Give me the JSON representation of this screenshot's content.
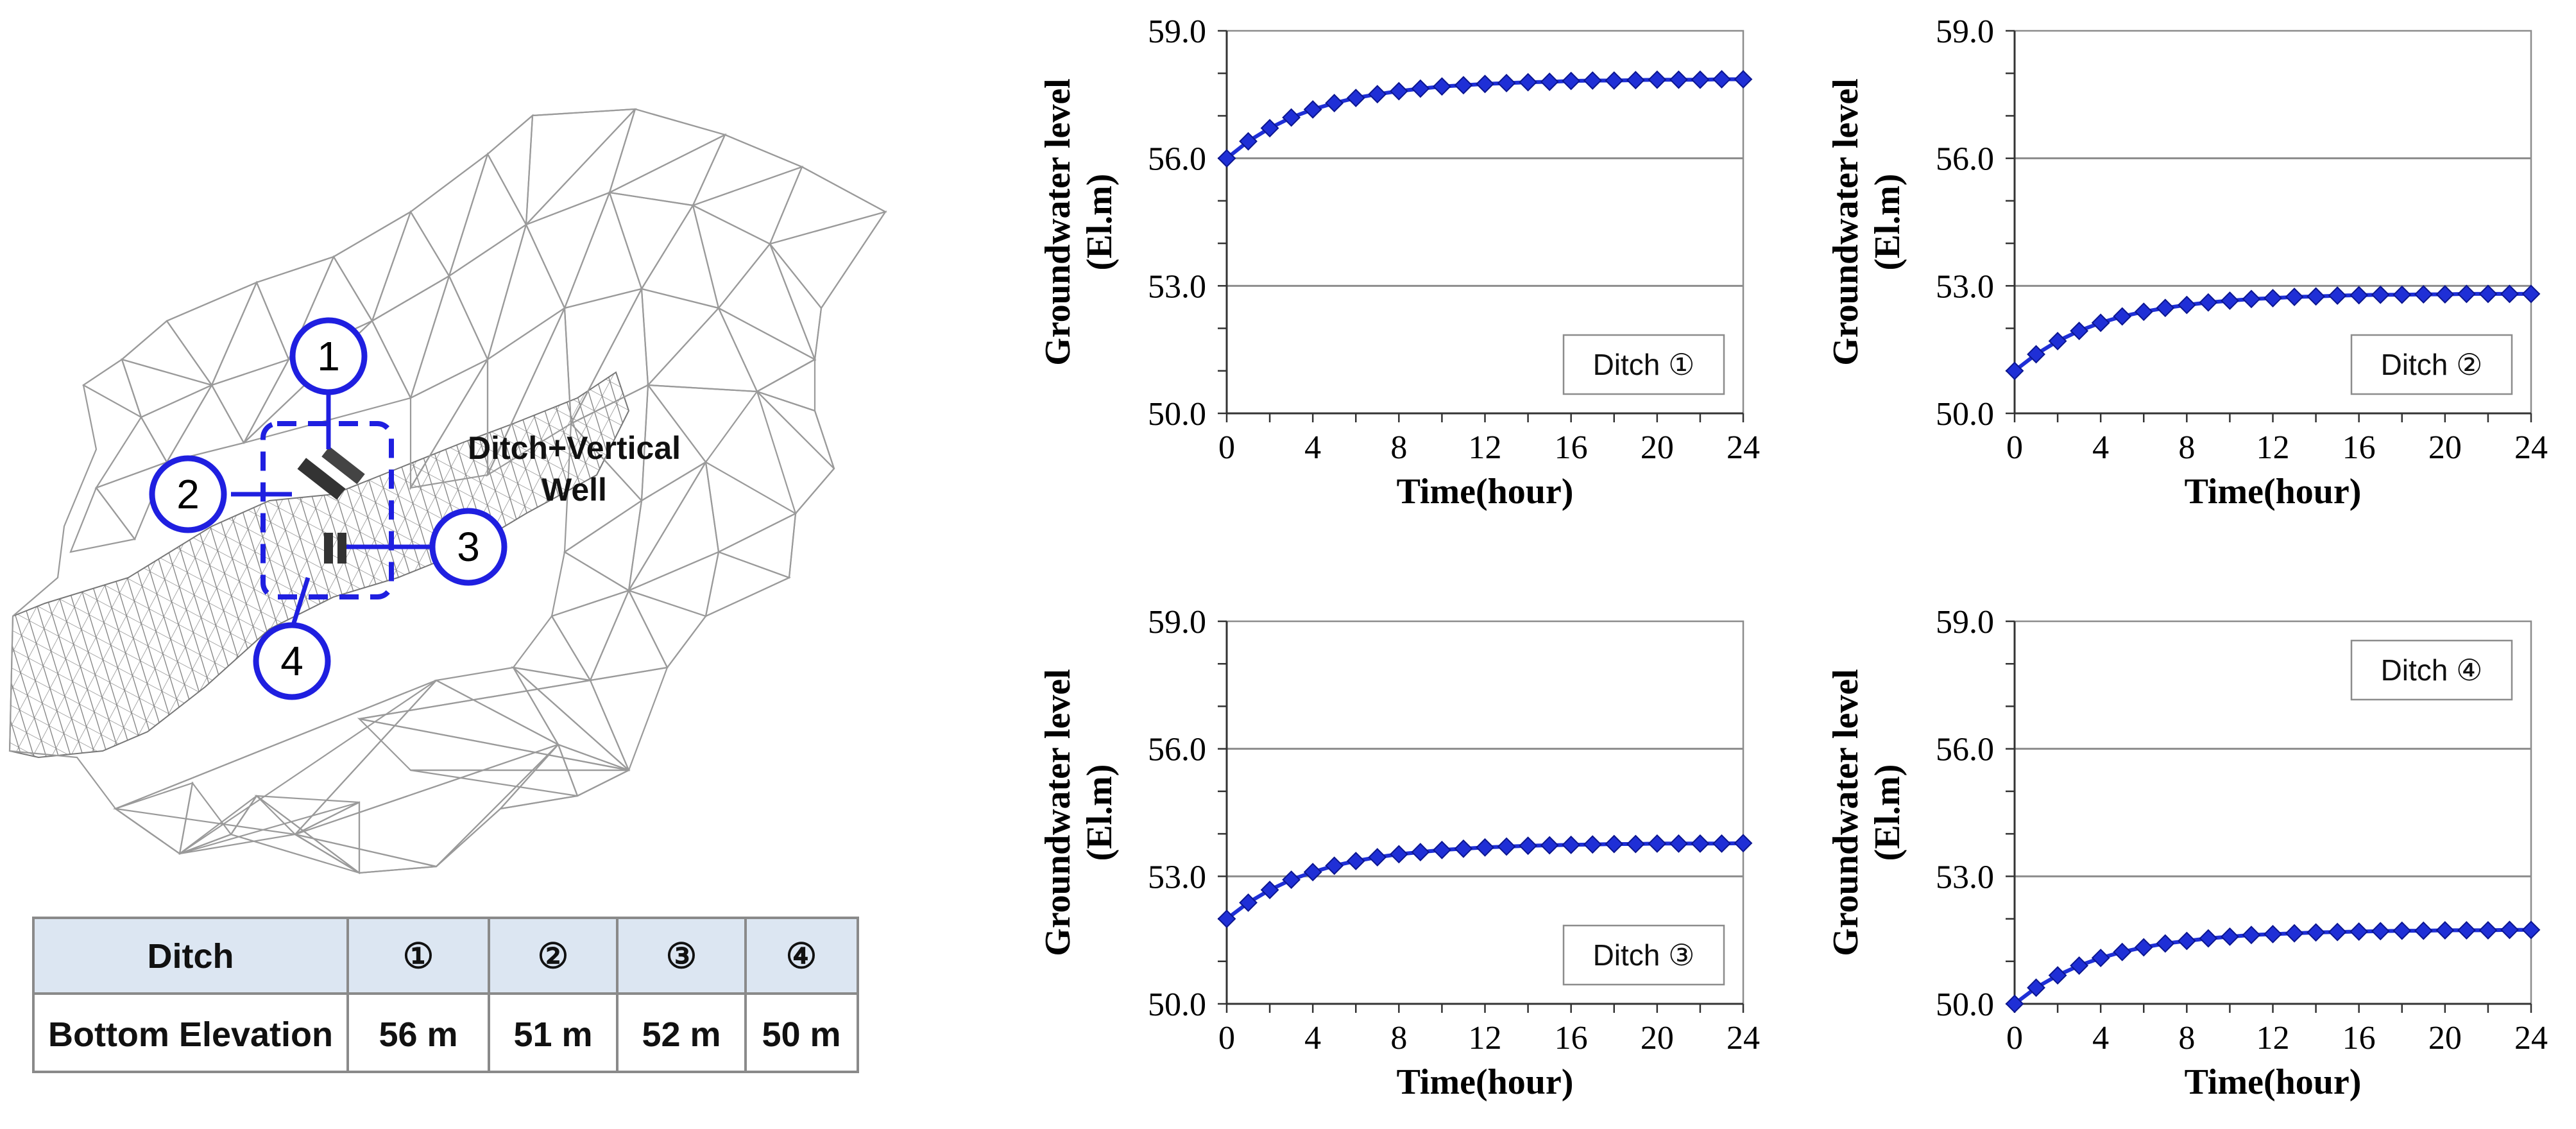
{
  "mesh": {
    "annotation_line1": "Ditch+Vertical",
    "annotation_line2": "Well",
    "markers": [
      "1",
      "2",
      "3",
      "4"
    ],
    "accent_color": "#1f1fe0"
  },
  "table": {
    "header_label": "Ditch",
    "row_label": "Bottom Elevation",
    "ditches": [
      "①",
      "②",
      "③",
      "④"
    ],
    "elevations": [
      "56 m",
      "51 m",
      "52 m",
      "50 m"
    ],
    "header_color": "#dce6f2"
  },
  "chart_data": [
    {
      "type": "line",
      "legend": "Ditch ①",
      "legend_position": "bottom-right",
      "xlabel": "Time(hour)",
      "ylabel": [
        "Groundwater level",
        "(El.m)"
      ],
      "xlim": [
        0,
        24
      ],
      "ylim": [
        50,
        59
      ],
      "xticks": [
        "0",
        "4",
        "8",
        "12",
        "16",
        "20",
        "24"
      ],
      "yticks": [
        "50.0",
        "53.0",
        "56.0",
        "59.0"
      ],
      "series_color": "#1f2fd6",
      "x": [
        0,
        1,
        2,
        3,
        4,
        5,
        6,
        7,
        8,
        9,
        10,
        11,
        12,
        13,
        14,
        15,
        16,
        17,
        18,
        19,
        20,
        21,
        22,
        23,
        24
      ],
      "y": [
        56.0,
        56.4,
        56.71,
        56.96,
        57.15,
        57.3,
        57.42,
        57.51,
        57.58,
        57.64,
        57.69,
        57.72,
        57.75,
        57.77,
        57.79,
        57.8,
        57.82,
        57.83,
        57.83,
        57.84,
        57.85,
        57.85,
        57.85,
        57.86,
        57.86
      ]
    },
    {
      "type": "line",
      "legend": "Ditch ②",
      "legend_position": "bottom-right",
      "xlabel": "Time(hour)",
      "ylabel": [
        "Groundwater level",
        "(El.m)"
      ],
      "xlim": [
        0,
        24
      ],
      "ylim": [
        50,
        59
      ],
      "xticks": [
        "0",
        "4",
        "8",
        "12",
        "16",
        "20",
        "24"
      ],
      "yticks": [
        "50.0",
        "53.0",
        "56.0",
        "59.0"
      ],
      "series_color": "#1f2fd6",
      "x": [
        0,
        1,
        2,
        3,
        4,
        5,
        6,
        7,
        8,
        9,
        10,
        11,
        12,
        13,
        14,
        15,
        16,
        17,
        18,
        19,
        20,
        21,
        22,
        23,
        24
      ],
      "y": [
        51.0,
        51.39,
        51.7,
        51.94,
        52.13,
        52.28,
        52.39,
        52.48,
        52.55,
        52.61,
        52.65,
        52.69,
        52.71,
        52.74,
        52.75,
        52.77,
        52.78,
        52.79,
        52.79,
        52.8,
        52.8,
        52.81,
        52.81,
        52.81,
        52.81
      ]
    },
    {
      "type": "line",
      "legend": "Ditch ③",
      "legend_position": "bottom-right",
      "xlabel": "Time(hour)",
      "ylabel": [
        "Groundwater level",
        "(El.m)"
      ],
      "xlim": [
        0,
        24
      ],
      "ylim": [
        50,
        59
      ],
      "xticks": [
        "0",
        "4",
        "8",
        "12",
        "16",
        "20",
        "24"
      ],
      "yticks": [
        "50.0",
        "53.0",
        "56.0",
        "59.0"
      ],
      "series_color": "#1f2fd6",
      "x": [
        0,
        1,
        2,
        3,
        4,
        5,
        6,
        7,
        8,
        9,
        10,
        11,
        12,
        13,
        14,
        15,
        16,
        17,
        18,
        19,
        20,
        21,
        22,
        23,
        24
      ],
      "y": [
        52.0,
        52.38,
        52.68,
        52.92,
        53.1,
        53.25,
        53.36,
        53.45,
        53.52,
        53.57,
        53.62,
        53.65,
        53.68,
        53.7,
        53.72,
        53.73,
        53.74,
        53.75,
        53.76,
        53.76,
        53.77,
        53.77,
        53.77,
        53.77,
        53.78
      ]
    },
    {
      "type": "line",
      "legend": "Ditch ④",
      "legend_position": "top-right",
      "xlabel": "Time(hour)",
      "ylabel": [
        "Groundwater level",
        "(El.m)"
      ],
      "xlim": [
        0,
        24
      ],
      "ylim": [
        50,
        59
      ],
      "xticks": [
        "0",
        "4",
        "8",
        "12",
        "16",
        "20",
        "24"
      ],
      "yticks": [
        "50.0",
        "53.0",
        "56.0",
        "59.0"
      ],
      "series_color": "#1f2fd6",
      "x": [
        0,
        1,
        2,
        3,
        4,
        5,
        6,
        7,
        8,
        9,
        10,
        11,
        12,
        13,
        14,
        15,
        16,
        17,
        18,
        19,
        20,
        21,
        22,
        23,
        24
      ],
      "y": [
        50.0,
        50.38,
        50.67,
        50.9,
        51.08,
        51.22,
        51.33,
        51.42,
        51.48,
        51.54,
        51.58,
        51.62,
        51.64,
        51.66,
        51.68,
        51.69,
        51.7,
        51.71,
        51.72,
        51.72,
        51.73,
        51.73,
        51.73,
        51.74,
        51.74
      ]
    }
  ]
}
